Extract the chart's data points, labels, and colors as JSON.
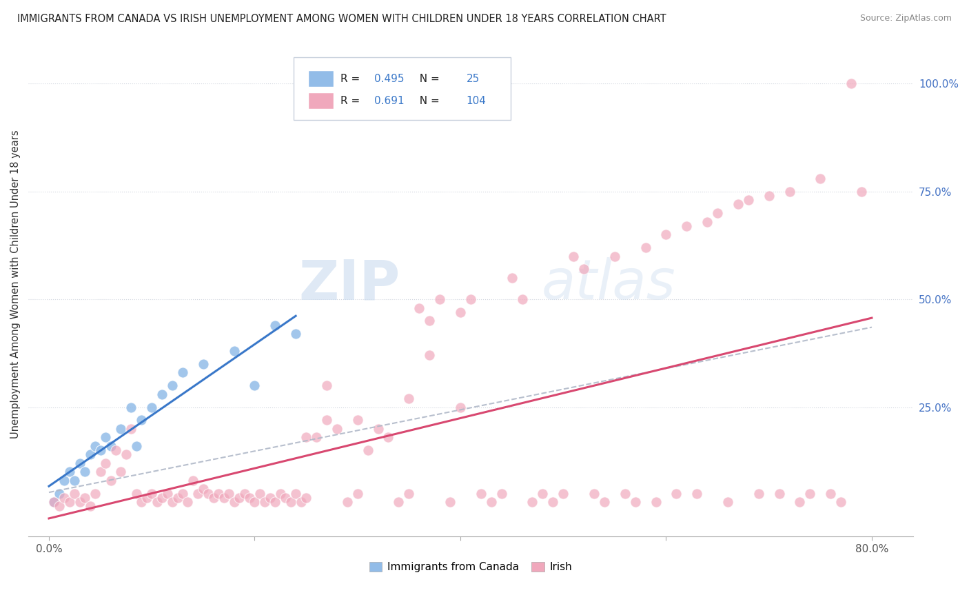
{
  "title": "IMMIGRANTS FROM CANADA VS IRISH UNEMPLOYMENT AMONG WOMEN WITH CHILDREN UNDER 18 YEARS CORRELATION CHART",
  "source": "Source: ZipAtlas.com",
  "ylabel": "Unemployment Among Women with Children Under 18 years",
  "x_tick_labels": [
    "0.0%",
    "",
    "",
    "",
    "80.0%"
  ],
  "x_tick_values": [
    0.0,
    20.0,
    40.0,
    60.0,
    80.0
  ],
  "y_tick_labels": [
    "25.0%",
    "50.0%",
    "75.0%",
    "100.0%"
  ],
  "y_tick_values": [
    25.0,
    50.0,
    75.0,
    100.0
  ],
  "xlim": [
    -2.0,
    84.0
  ],
  "ylim": [
    -5.0,
    112.0
  ],
  "legend_labels": [
    "Immigrants from Canada",
    "Irish"
  ],
  "legend_R": [
    0.495,
    0.691
  ],
  "legend_N": [
    25,
    104
  ],
  "blue_color": "#92bce8",
  "pink_color": "#f0a8bc",
  "blue_line_color": "#3a78c9",
  "pink_line_color": "#d84870",
  "dashed_line_color": "#b0b8c8",
  "watermark_zip": "ZIP",
  "watermark_atlas": "atlas",
  "blue_scatter_x": [
    0.5,
    1.0,
    1.5,
    2.0,
    2.5,
    3.0,
    3.5,
    4.0,
    4.5,
    5.0,
    5.5,
    6.0,
    7.0,
    8.0,
    8.5,
    9.0,
    10.0,
    11.0,
    12.0,
    13.0,
    15.0,
    18.0,
    20.0,
    22.0,
    24.0
  ],
  "blue_scatter_y": [
    3.0,
    5.0,
    8.0,
    10.0,
    8.0,
    12.0,
    10.0,
    14.0,
    16.0,
    15.0,
    18.0,
    16.0,
    20.0,
    25.0,
    16.0,
    22.0,
    25.0,
    28.0,
    30.0,
    33.0,
    35.0,
    38.0,
    30.0,
    44.0,
    42.0
  ],
  "pink_scatter_x": [
    0.5,
    1.0,
    1.5,
    2.0,
    2.5,
    3.0,
    3.5,
    4.0,
    4.5,
    5.0,
    5.5,
    6.0,
    6.5,
    7.0,
    7.5,
    8.0,
    8.5,
    9.0,
    9.5,
    10.0,
    10.5,
    11.0,
    11.5,
    12.0,
    12.5,
    13.0,
    13.5,
    14.0,
    14.5,
    15.0,
    15.5,
    16.0,
    16.5,
    17.0,
    17.5,
    18.0,
    18.5,
    19.0,
    19.5,
    20.0,
    20.5,
    21.0,
    21.5,
    22.0,
    22.5,
    23.0,
    23.5,
    24.0,
    24.5,
    25.0,
    26.0,
    27.0,
    28.0,
    29.0,
    30.0,
    31.0,
    32.0,
    33.0,
    34.0,
    35.0,
    36.0,
    37.0,
    38.0,
    39.0,
    40.0,
    41.0,
    42.0,
    43.0,
    44.0,
    45.0,
    46.0,
    47.0,
    48.0,
    49.0,
    50.0,
    51.0,
    52.0,
    53.0,
    54.0,
    55.0,
    56.0,
    57.0,
    58.0,
    59.0,
    60.0,
    61.0,
    62.0,
    63.0,
    64.0,
    65.0,
    66.0,
    67.0,
    68.0,
    69.0,
    70.0,
    71.0,
    72.0,
    73.0,
    74.0,
    75.0,
    76.0,
    77.0,
    78.0,
    79.0
  ],
  "pink_scatter_y": [
    3.0,
    2.0,
    4.0,
    3.0,
    5.0,
    3.0,
    4.0,
    2.0,
    5.0,
    10.0,
    12.0,
    8.0,
    15.0,
    10.0,
    14.0,
    20.0,
    5.0,
    3.0,
    4.0,
    5.0,
    3.0,
    4.0,
    5.0,
    3.0,
    4.0,
    5.0,
    3.0,
    8.0,
    5.0,
    6.0,
    5.0,
    4.0,
    5.0,
    4.0,
    5.0,
    3.0,
    4.0,
    5.0,
    4.0,
    3.0,
    5.0,
    3.0,
    4.0,
    3.0,
    5.0,
    4.0,
    3.0,
    5.0,
    3.0,
    4.0,
    18.0,
    22.0,
    20.0,
    3.0,
    5.0,
    15.0,
    20.0,
    18.0,
    3.0,
    5.0,
    48.0,
    45.0,
    50.0,
    3.0,
    47.0,
    50.0,
    5.0,
    3.0,
    5.0,
    55.0,
    50.0,
    3.0,
    5.0,
    3.0,
    5.0,
    60.0,
    57.0,
    5.0,
    3.0,
    60.0,
    5.0,
    3.0,
    62.0,
    3.0,
    65.0,
    5.0,
    67.0,
    5.0,
    68.0,
    70.0,
    3.0,
    72.0,
    73.0,
    5.0,
    74.0,
    5.0,
    75.0,
    3.0,
    5.0,
    78.0,
    5.0,
    3.0,
    100.0,
    75.0
  ],
  "pink_scatter_extra_x": [
    30.0,
    35.0,
    40.0,
    37.0,
    25.0,
    27.0
  ],
  "pink_scatter_extra_y": [
    22.0,
    27.0,
    25.0,
    37.0,
    18.0,
    30.0
  ]
}
